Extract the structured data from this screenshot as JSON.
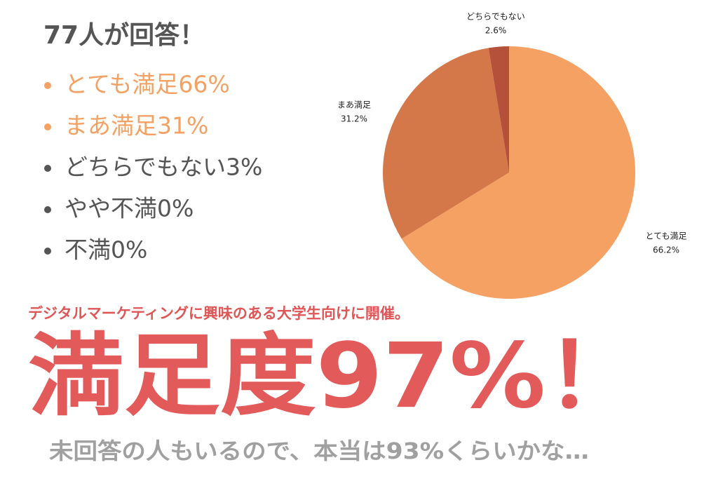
{
  "heading": "77人が回答！",
  "bullets": [
    "とても満足66%",
    "まあ満足31%",
    "どちらでもない3%",
    "やや不満0%",
    "不満0%"
  ],
  "subheading": "デジタルマーケティングに興味のある大学生向けに開催。",
  "headline": "満足度97%！",
  "footnote": "未回答の人もいるので、本当は93%くらいかな…",
  "chart_data": {
    "type": "pie",
    "categories": [
      "とても満足",
      "まあ満足",
      "どちらでもない"
    ],
    "values": [
      66.2,
      31.2,
      2.6
    ],
    "value_labels": [
      "66.2%",
      "31.2%",
      "2.6%"
    ],
    "colors": [
      "#f5a163",
      "#d4784a",
      "#b5503a"
    ]
  }
}
